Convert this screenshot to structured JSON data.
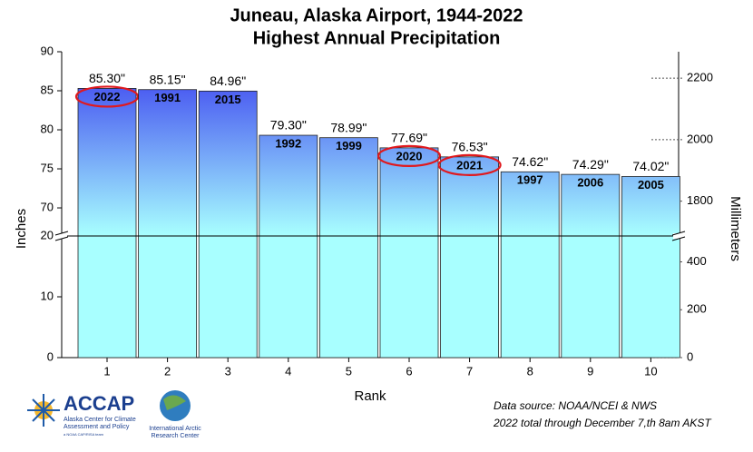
{
  "chart_data": {
    "type": "bar",
    "title": [
      "Juneau, Alaska Airport, 1944-2022",
      "Highest Annual Precipitation"
    ],
    "x_label": "Rank",
    "y_label": "Inches",
    "y2_label": "Millimeters",
    "categories": [
      "1",
      "2",
      "3",
      "4",
      "5",
      "6",
      "7",
      "8",
      "9",
      "10"
    ],
    "values": [
      85.3,
      85.15,
      84.96,
      79.3,
      78.99,
      77.69,
      76.53,
      74.62,
      74.29,
      74.02
    ],
    "value_labels": [
      "85.30\"",
      "85.15\"",
      "84.96\"",
      "79.30\"",
      "78.99\"",
      "77.69\"",
      "76.53\"",
      "74.62\"",
      "74.29\"",
      "74.02\""
    ],
    "years": [
      "2022",
      "1991",
      "2015",
      "1992",
      "1999",
      "2020",
      "2021",
      "1997",
      "2006",
      "2005"
    ],
    "circled": [
      0,
      5,
      6
    ],
    "circle_color": "#e0191e",
    "color_top": "#3535ee",
    "color_bottom": "#a8ffff",
    "y_segments": [
      {
        "ylim": [
          0,
          20
        ],
        "yticks": [
          0,
          10,
          20
        ],
        "y2lim": [
          0,
          508
        ],
        "y2ticks": [
          0,
          200,
          400
        ]
      },
      {
        "ylim": [
          66.4,
          90
        ],
        "yticks": [
          70,
          75,
          80,
          85,
          90
        ],
        "y2lim": [
          1686.56,
          2286
        ],
        "y2ticks": [
          1800,
          2000,
          2200
        ]
      }
    ],
    "notes": [
      "Data source: NOAA/NCEI & NWS",
      "2022 total through December 7,th 8am AKST"
    ]
  },
  "logos": {
    "accap": "ACCAP",
    "accap_lines": [
      "Alaska Center for Climate",
      "Assessment and Policy",
      "a NOAA CAP/RISA team"
    ],
    "iarc_lines": [
      "International Arctic",
      "Research Center"
    ]
  }
}
